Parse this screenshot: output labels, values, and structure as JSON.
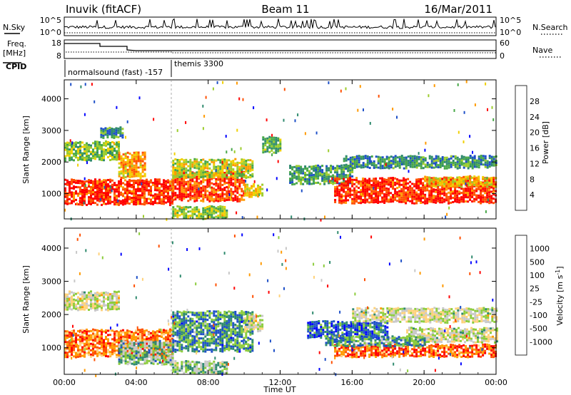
{
  "header": {
    "station": "Inuvik (fitACF)",
    "beam": "Beam 11",
    "date": "16/Mar/2011"
  },
  "nsky_panel": {
    "label": "N.Sky",
    "right_label": "N.Search",
    "left_ticks": [
      "10^5",
      "10^0"
    ],
    "right_ticks": [
      "10^5",
      "10^0"
    ]
  },
  "freq_panel": {
    "label_line1": "Freq.",
    "label_line2": "[MHz]",
    "right_label": "Nave",
    "left_ticks": [
      "18",
      "8"
    ],
    "right_ticks": [
      "60",
      "0"
    ]
  },
  "cpid_panel": {
    "label": "CPID",
    "entries": [
      {
        "text": "normalsound (fast) -157",
        "start_hour": 0
      },
      {
        "text": "themis 3300",
        "start_hour": 6
      }
    ]
  },
  "chart_data": [
    {
      "type": "heatmap",
      "name": "power",
      "ylabel": "Slant Range [km]",
      "ylim": [
        200,
        4600
      ],
      "yticks": [
        1000,
        2000,
        3000,
        4000
      ],
      "xlim": [
        0,
        24
      ],
      "colorbar": {
        "label": "Power [dB]",
        "range": [
          0,
          32
        ],
        "ticks": [
          4,
          8,
          12,
          16,
          20,
          24,
          28
        ],
        "colors": [
          "#0000ff",
          "#1e50c8",
          "#2f8a6e",
          "#48a848",
          "#9ccc2c",
          "#f0d000",
          "#ff9a00",
          "#ff5000",
          "#ff0000"
        ]
      },
      "bands": [
        {
          "t0": 0.0,
          "t1": 6.0,
          "r0": 650,
          "r1": 1450,
          "level": 0.92
        },
        {
          "t0": 0.0,
          "t1": 3.0,
          "r0": 2050,
          "r1": 2650,
          "level": 0.45
        },
        {
          "t0": 3.0,
          "t1": 4.5,
          "r0": 1500,
          "r1": 2300,
          "level": 0.7
        },
        {
          "t0": 2.0,
          "t1": 3.2,
          "r0": 2800,
          "r1": 3100,
          "level": 0.3
        },
        {
          "t0": 6.0,
          "t1": 10.0,
          "r0": 800,
          "r1": 1700,
          "level": 0.88
        },
        {
          "t0": 6.0,
          "t1": 10.5,
          "r0": 1500,
          "r1": 2100,
          "level": 0.55
        },
        {
          "t0": 6.0,
          "t1": 9.0,
          "r0": 250,
          "r1": 600,
          "level": 0.5
        },
        {
          "t0": 10.0,
          "t1": 11.0,
          "r0": 900,
          "r1": 1300,
          "level": 0.6
        },
        {
          "t0": 11.0,
          "t1": 12.0,
          "r0": 2300,
          "r1": 2800,
          "level": 0.4
        },
        {
          "t0": 12.5,
          "t1": 16.0,
          "r0": 1300,
          "r1": 1900,
          "level": 0.35
        },
        {
          "t0": 15.0,
          "t1": 24.0,
          "r0": 750,
          "r1": 1500,
          "level": 0.92
        },
        {
          "t0": 15.5,
          "t1": 24.0,
          "r0": 1850,
          "r1": 2200,
          "level": 0.3
        },
        {
          "t0": 20.0,
          "t1": 24.0,
          "r0": 1250,
          "r1": 1550,
          "level": 0.65
        }
      ]
    },
    {
      "type": "heatmap",
      "name": "velocity",
      "ylabel": "Slant Range [km]",
      "ylim": [
        200,
        4600
      ],
      "yticks": [
        1000,
        2000,
        3000,
        4000
      ],
      "xlim": [
        0,
        24
      ],
      "colorbar": {
        "label": "Velocity [m s^-1]",
        "ticks": [
          "-1000",
          "-500",
          "-100",
          "-25",
          "25",
          "100",
          "500",
          "1000"
        ],
        "colors": [
          "#ff0000",
          "#ff5000",
          "#ff9a00",
          "#ffd27a",
          "#c8c8c8",
          "#8ccc3c",
          "#2f8a6e",
          "#1e50c8",
          "#0000ff"
        ]
      },
      "bands": [
        {
          "t0": 0.0,
          "t1": 6.0,
          "r0": 750,
          "r1": 1550,
          "level": 0.22
        },
        {
          "t0": 0.0,
          "t1": 3.0,
          "r0": 2150,
          "r1": 2700,
          "level": 0.5
        },
        {
          "t0": 3.0,
          "t1": 6.0,
          "r0": 500,
          "r1": 1200,
          "level": 0.62
        },
        {
          "t0": 6.0,
          "t1": 10.5,
          "r0": 900,
          "r1": 2100,
          "level": 0.72
        },
        {
          "t0": 6.0,
          "t1": 9.0,
          "r0": 250,
          "r1": 600,
          "level": 0.6
        },
        {
          "t0": 10.0,
          "t1": 11.0,
          "r0": 1500,
          "r1": 2000,
          "level": 0.5
        },
        {
          "t0": 13.5,
          "t1": 18.0,
          "r0": 1300,
          "r1": 1800,
          "level": 0.8
        },
        {
          "t0": 15.0,
          "t1": 24.0,
          "r0": 750,
          "r1": 1100,
          "level": 0.18
        },
        {
          "t0": 16.0,
          "t1": 24.0,
          "r0": 1800,
          "r1": 2200,
          "level": 0.5
        },
        {
          "t0": 19.0,
          "t1": 24.0,
          "r0": 1200,
          "r1": 1600,
          "level": 0.5
        },
        {
          "t0": 14.5,
          "t1": 20.0,
          "r0": 1050,
          "r1": 1350,
          "level": 0.7
        }
      ]
    }
  ],
  "x_axis": {
    "label": "Time UT",
    "ticks": [
      "00:00",
      "04:00",
      "08:00",
      "12:00",
      "16:00",
      "20:00",
      "00:00"
    ]
  }
}
